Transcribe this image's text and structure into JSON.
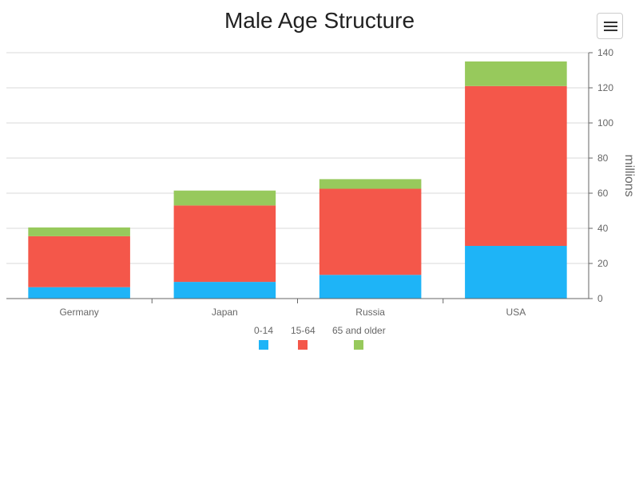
{
  "title": "Male Age Structure",
  "menu": {
    "icon": "hamburger-menu-icon"
  },
  "chart_data": {
    "type": "bar",
    "stacked": true,
    "title": "Male Age Structure",
    "categories": [
      "Germany",
      "Japan",
      "Russia",
      "USA"
    ],
    "series": [
      {
        "name": "0-14",
        "color": "#1eb4f7",
        "values": [
          6.5,
          9.5,
          13.5,
          30
        ]
      },
      {
        "name": "15-64",
        "color": "#f4574a",
        "values": [
          29,
          43.5,
          49,
          91
        ]
      },
      {
        "name": "65 and older",
        "color": "#97c95c",
        "values": [
          5,
          8.5,
          5.5,
          14
        ]
      }
    ],
    "ylabel": "millions",
    "ylim": [
      0,
      140
    ],
    "yticks": [
      "0",
      "20",
      "40",
      "60",
      "80",
      "100",
      "120",
      "140"
    ],
    "y_axis_side": "right",
    "grid": true,
    "legend_position": "bottom"
  }
}
